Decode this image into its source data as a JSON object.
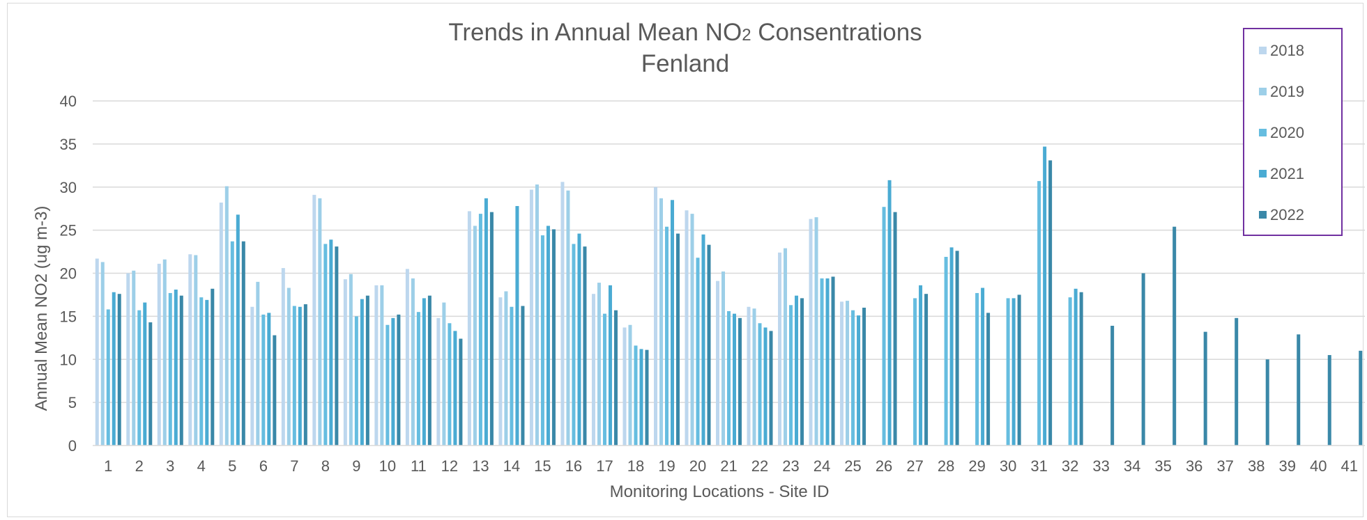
{
  "chart_data": {
    "type": "bar",
    "title": {
      "main": "Trends in Annual Mean NO",
      "sub2": "2",
      "rest": " Consentrations",
      "line2": "Fenland"
    },
    "xlabel": "Monitoring Locations - Site ID",
    "ylabel": "Annual Mean NO2 (ug m-3)",
    "ylim": [
      0,
      40
    ],
    "yticks": [
      "0",
      "5",
      "10",
      "15",
      "20",
      "25",
      "30",
      "35",
      "40"
    ],
    "grid": true,
    "legend_position": "top-right",
    "categories": [
      "1",
      "2",
      "3",
      "4",
      "5",
      "6",
      "7",
      "8",
      "9",
      "10",
      "11",
      "12",
      "13",
      "14",
      "15",
      "16",
      "17",
      "18",
      "19",
      "20",
      "21",
      "22",
      "23",
      "24",
      "25",
      "26",
      "27",
      "28",
      "29",
      "30",
      "31",
      "32",
      "33",
      "34",
      "35",
      "36",
      "37",
      "38",
      "39",
      "40",
      "41"
    ],
    "series": [
      {
        "name": "2018",
        "color": "#bdd7ee",
        "values": [
          21.7,
          20.0,
          21.1,
          22.2,
          28.2,
          16.1,
          20.6,
          29.1,
          19.3,
          18.6,
          20.5,
          14.8,
          27.2,
          17.2,
          29.7,
          30.6,
          17.6,
          13.7,
          30.0,
          27.3,
          19.1,
          16.1,
          22.4,
          26.3,
          16.7,
          null,
          null,
          null,
          null,
          null,
          null,
          null,
          null,
          null,
          null,
          null,
          null,
          null,
          null,
          null,
          null
        ]
      },
      {
        "name": "2019",
        "color": "#9dcfe8",
        "values": [
          21.3,
          20.3,
          21.6,
          22.1,
          30.1,
          19.0,
          18.3,
          28.7,
          19.9,
          18.6,
          19.4,
          16.6,
          25.5,
          17.9,
          30.3,
          29.6,
          18.9,
          14.0,
          28.7,
          26.9,
          20.2,
          15.9,
          22.9,
          26.5,
          16.8,
          null,
          null,
          null,
          null,
          null,
          null,
          null,
          null,
          null,
          null,
          null,
          null,
          null,
          null,
          null,
          null
        ]
      },
      {
        "name": "2020",
        "color": "#66bde0",
        "values": [
          15.8,
          15.7,
          17.7,
          17.2,
          23.7,
          15.2,
          16.2,
          23.4,
          15.0,
          14.0,
          15.5,
          14.2,
          26.9,
          16.1,
          24.4,
          23.4,
          15.3,
          11.6,
          25.4,
          21.8,
          15.6,
          14.2,
          16.3,
          19.4,
          15.7,
          27.7,
          17.1,
          21.9,
          17.7,
          17.1,
          30.7,
          17.2,
          null,
          null,
          null,
          null,
          null,
          null,
          null,
          null,
          null
        ]
      },
      {
        "name": "2021",
        "color": "#4aabd3",
        "values": [
          17.8,
          16.6,
          18.1,
          16.9,
          26.8,
          15.4,
          16.1,
          23.9,
          17.0,
          14.8,
          17.1,
          13.3,
          28.7,
          27.8,
          25.5,
          24.6,
          18.6,
          11.2,
          28.5,
          24.5,
          15.3,
          13.7,
          17.4,
          19.4,
          15.1,
          30.8,
          18.6,
          23.0,
          18.3,
          17.1,
          34.7,
          18.2,
          null,
          null,
          null,
          null,
          null,
          null,
          null,
          null,
          null
        ]
      },
      {
        "name": "2022",
        "color": "#3a88a8",
        "values": [
          17.6,
          14.3,
          17.4,
          18.2,
          23.7,
          12.8,
          16.4,
          23.1,
          17.4,
          15.2,
          17.4,
          12.4,
          27.1,
          16.2,
          25.1,
          23.1,
          15.7,
          11.1,
          24.6,
          23.3,
          14.8,
          13.3,
          17.1,
          19.6,
          16.0,
          27.1,
          17.6,
          22.6,
          15.4,
          17.5,
          33.1,
          17.8,
          13.9,
          20.0,
          25.4,
          13.2,
          14.8,
          10.0,
          12.9,
          10.5,
          11.0
        ]
      }
    ]
  }
}
